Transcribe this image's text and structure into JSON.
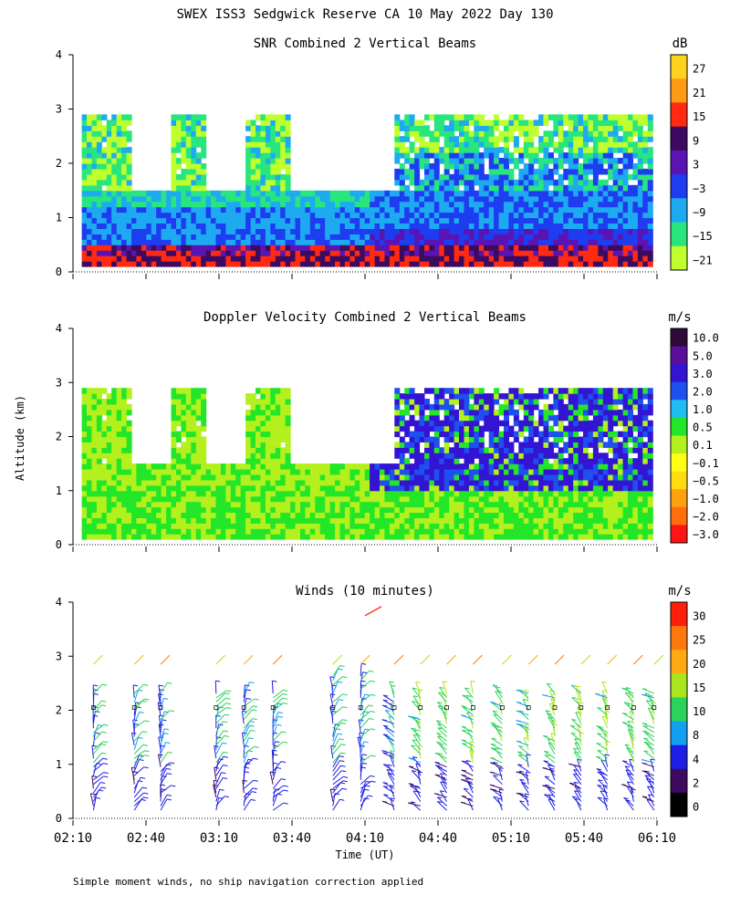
{
  "main_title": "SWEX ISS3 Sedgwick Reserve CA  10 May 2022 Day 130",
  "y_axis_label": "Altitude (km)",
  "x_axis_label": "Time (UT)",
  "footnote": "Simple moment winds, no ship navigation correction applied",
  "chart_data": [
    {
      "type": "heatmap",
      "title": "SNR Combined 2 Vertical Beams",
      "ylabel": "Altitude (km)",
      "ylim": [
        0,
        4
      ],
      "y_ticks": [
        "0",
        "1",
        "2",
        "3",
        "4"
      ],
      "x_ticks": [
        "02:10",
        "02:40",
        "03:10",
        "03:40",
        "04:10",
        "04:40",
        "05:10",
        "05:40",
        "06:10"
      ],
      "colorbar": {
        "unit": "dB",
        "labels": [
          "27",
          "21",
          "15",
          "9",
          "3",
          "−3",
          "−9",
          "−15",
          "−21"
        ],
        "colors": [
          "#ffd21e",
          "#ff9a14",
          "#ff2a0f",
          "#3c0a5f",
          "#5a14b4",
          "#1e3cf0",
          "#1eaaf0",
          "#28e67d",
          "#beff2d"
        ]
      }
    },
    {
      "type": "heatmap",
      "title": "Doppler Velocity Combined 2 Vertical Beams",
      "ylabel": "Altitude (km)",
      "ylim": [
        0,
        4
      ],
      "y_ticks": [
        "0",
        "1",
        "2",
        "3",
        "4"
      ],
      "x_ticks": [
        "02:10",
        "02:40",
        "03:10",
        "03:40",
        "04:10",
        "04:40",
        "05:10",
        "05:40",
        "06:10"
      ],
      "colorbar": {
        "unit": "m/s",
        "labels": [
          "10.0",
          "5.0",
          "3.0",
          "2.0",
          "1.0",
          "0.5",
          "0.1",
          "−0.1",
          "−0.5",
          "−1.0",
          "−2.0",
          "−3.0"
        ],
        "colors": [
          "#2d0a37",
          "#5a0f9b",
          "#3214d2",
          "#1e50f0",
          "#1ebef0",
          "#23e628",
          "#b4f01e",
          "#ffff14",
          "#ffdc0f",
          "#ffa00f",
          "#ff6e0a",
          "#ff1414"
        ]
      }
    },
    {
      "type": "scatter",
      "title": "Winds (10 minutes)",
      "ylabel": "Altitude (km)",
      "ylim": [
        0,
        4
      ],
      "y_ticks": [
        "0",
        "1",
        "2",
        "3",
        "4"
      ],
      "x_ticks": [
        "02:10",
        "02:40",
        "03:10",
        "03:40",
        "04:10",
        "04:40",
        "05:10",
        "05:40",
        "06:10"
      ],
      "xlabel": "Time (UT)",
      "colorbar": {
        "unit": "m/s",
        "labels": [
          "30",
          "25",
          "20",
          "15",
          "10",
          "8",
          "4",
          "2",
          "0"
        ],
        "colors": [
          "#ff1e0a",
          "#ff780f",
          "#ffaa14",
          "#aae61e",
          "#2dd25a",
          "#14a0f0",
          "#1e1ee6",
          "#3c0a5f",
          "#000000"
        ]
      }
    }
  ]
}
